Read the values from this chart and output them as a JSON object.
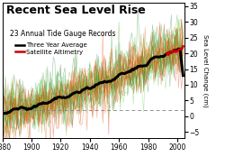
{
  "title": "Recent Sea Level Rise",
  "subtitle": "23 Annual Tide Gauge Records",
  "legend": [
    {
      "label": "Three Year Average",
      "color": "#000000",
      "lw": 1.8
    },
    {
      "label": "Satellite Altimetry",
      "color": "#cc0000",
      "lw": 1.8
    }
  ],
  "xlim": [
    1880,
    2005
  ],
  "ylim": [
    -7,
    36
  ],
  "yticks_right": [
    -5,
    0,
    5,
    10,
    15,
    20,
    25,
    30,
    35
  ],
  "xticks": [
    1880,
    1900,
    1920,
    1940,
    1960,
    1980,
    2000
  ],
  "ylabel_right": "Sea Level Change (cm)",
  "dashed_y": 2.0,
  "bg_color": "#ffffff",
  "plot_bg": "#ffffff",
  "n_gauges": 23,
  "seed": 42,
  "gauge_colors": [
    "#cc3300",
    "#44aa22",
    "#dd6600",
    "#228833",
    "#ff5500",
    "#33bb33",
    "#ee4400",
    "#55cc44"
  ],
  "three_year_avg_color": "#000000",
  "satellite_color": "#cc0000",
  "satellite_start_year": 1993,
  "title_fontsize": 9.0,
  "subtitle_fontsize": 5.5,
  "legend_fontsize": 5.0,
  "tick_fontsize": 5.5,
  "ylabel_fontsize": 5.0
}
